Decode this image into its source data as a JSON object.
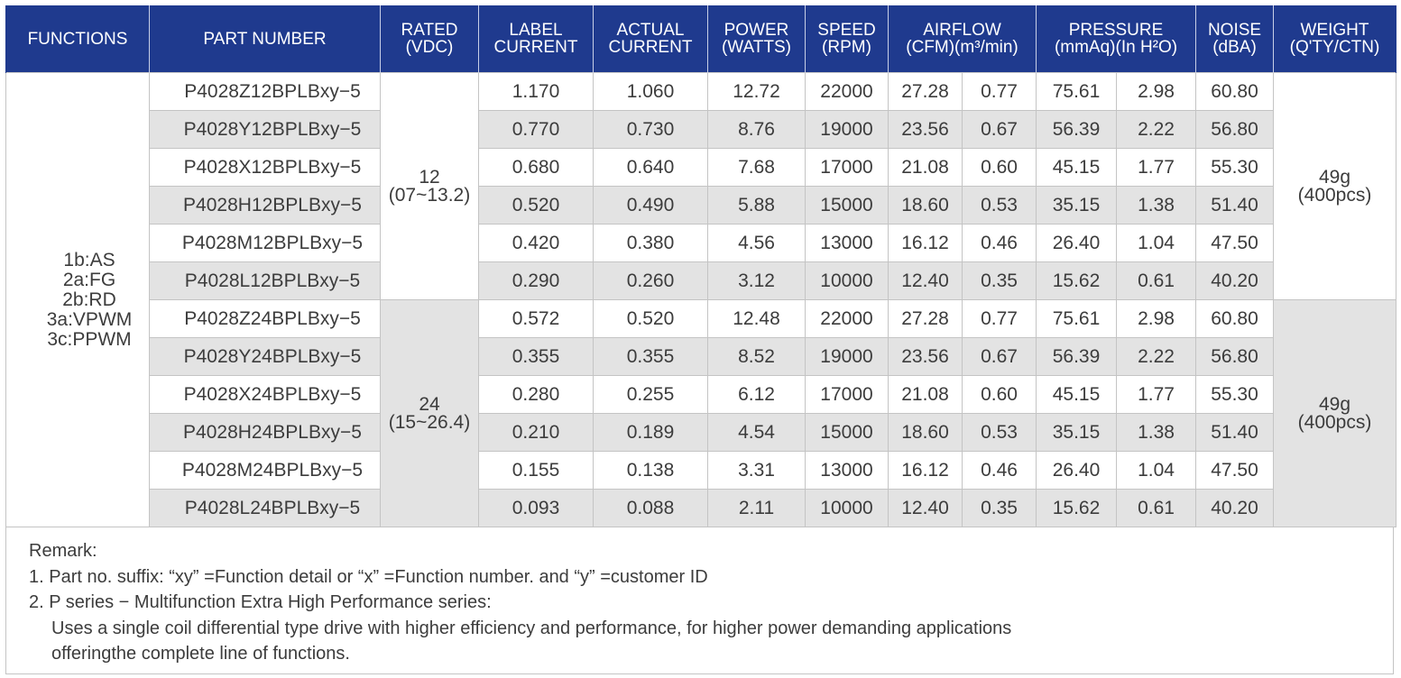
{
  "headers": {
    "functions": "FUNCTIONS",
    "part_number": "PART NUMBER",
    "rated_1": "RATED",
    "rated_2": "(VDC)",
    "label_1": "LABEL",
    "label_2": "CURRENT",
    "actual_1": "ACTUAL",
    "actual_2": "CURRENT",
    "power_1": "POWER",
    "power_2": "(WATTS)",
    "speed_1": "SPEED",
    "speed_2": "(RPM)",
    "airflow_1": "AIRFLOW",
    "airflow_2": "(CFM)(m³/min)",
    "pressure_1": "PRESSURE",
    "pressure_2": "(mmAq)(In H²O)",
    "noise_1": "NOISE",
    "noise_2": "(dBA)",
    "weight_1": "WEIGHT",
    "weight_2": "(Q'TY/CTN)"
  },
  "functions": [
    "1b:AS",
    "2a:FG",
    "2b:RD",
    "3a:VPWM",
    "3c:PPWM"
  ],
  "groups": [
    {
      "rated_value": "12",
      "rated_range": "(07~13.2)",
      "weight": "49g",
      "quantity": "(400pcs)",
      "rows": [
        [
          "P4028Z12BPLBxy−5",
          "1.170",
          "1.060",
          "12.72",
          "22000",
          "27.28",
          "0.77",
          "75.61",
          "2.98",
          "60.80"
        ],
        [
          "P4028Y12BPLBxy−5",
          "0.770",
          "0.730",
          "8.76",
          "19000",
          "23.56",
          "0.67",
          "56.39",
          "2.22",
          "56.80"
        ],
        [
          "P4028X12BPLBxy−5",
          "0.680",
          "0.640",
          "7.68",
          "17000",
          "21.08",
          "0.60",
          "45.15",
          "1.77",
          "55.30"
        ],
        [
          "P4028H12BPLBxy−5",
          "0.520",
          "0.490",
          "5.88",
          "15000",
          "18.60",
          "0.53",
          "35.15",
          "1.38",
          "51.40"
        ],
        [
          "P4028M12BPLBxy−5",
          "0.420",
          "0.380",
          "4.56",
          "13000",
          "16.12",
          "0.46",
          "26.40",
          "1.04",
          "47.50"
        ],
        [
          "P4028L12BPLBxy−5",
          "0.290",
          "0.260",
          "3.12",
          "10000",
          "12.40",
          "0.35",
          "15.62",
          "0.61",
          "40.20"
        ]
      ]
    },
    {
      "rated_value": "24",
      "rated_range": "(15~26.4)",
      "weight": "49g",
      "quantity": "(400pcs)",
      "rows": [
        [
          "P4028Z24BPLBxy−5",
          "0.572",
          "0.520",
          "12.48",
          "22000",
          "27.28",
          "0.77",
          "75.61",
          "2.98",
          "60.80"
        ],
        [
          "P4028Y24BPLBxy−5",
          "0.355",
          "0.355",
          "8.52",
          "19000",
          "23.56",
          "0.67",
          "56.39",
          "2.22",
          "56.80"
        ],
        [
          "P4028X24BPLBxy−5",
          "0.280",
          "0.255",
          "6.12",
          "17000",
          "21.08",
          "0.60",
          "45.15",
          "1.77",
          "55.30"
        ],
        [
          "P4028H24BPLBxy−5",
          "0.210",
          "0.189",
          "4.54",
          "15000",
          "18.60",
          "0.53",
          "35.15",
          "1.38",
          "51.40"
        ],
        [
          "P4028M24BPLBxy−5",
          "0.155",
          "0.138",
          "3.31",
          "13000",
          "16.12",
          "0.46",
          "26.40",
          "1.04",
          "47.50"
        ],
        [
          "P4028L24BPLBxy−5",
          "0.093",
          "0.088",
          "2.11",
          "10000",
          "12.40",
          "0.35",
          "15.62",
          "0.61",
          "40.20"
        ]
      ]
    }
  ],
  "remark": {
    "title": "Remark:",
    "line1": "1. Part no. suffix: “xy” =Function detail or “x” =Function number. and “y” =customer ID",
    "line2": "2. P series − Multifunction Extra High Performance series:",
    "line3": "Uses a single coil differential type drive with higher efficiency and performance, for higher power demanding applications",
    "line4": "offeringthe complete line of functions."
  },
  "colors": {
    "header_bg": "#1f3a8e",
    "shade": "#e3e3e3"
  }
}
